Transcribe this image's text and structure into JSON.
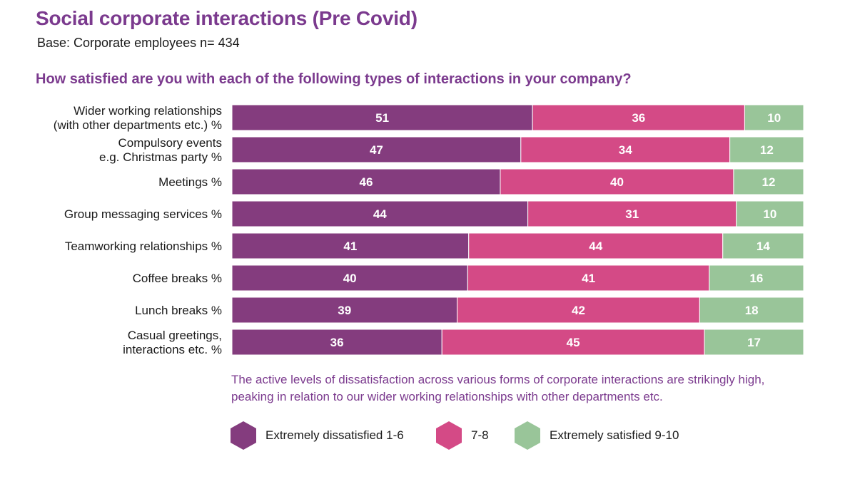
{
  "header": {
    "title": "Social corporate interactions (Pre Covid)",
    "base": "Base: Corporate employees n= 434",
    "question": "How satisfied are you with each of the following types of interactions in your company?"
  },
  "annotation": "The active levels of dissatisfaction across various forms of corporate interactions are strikingly high, peaking in relation to our wider working relationships with other departments etc.",
  "legend": [
    {
      "label": "Extremely dissatisfied 1-6",
      "color": "#843c7e"
    },
    {
      "label": "7-8",
      "color": "#d44a86"
    },
    {
      "label": "Extremely satisfied 9-10",
      "color": "#99c599"
    }
  ],
  "chart_data": {
    "type": "bar",
    "orientation": "horizontal",
    "stacked": true,
    "categories": [
      [
        "Wider working relationships",
        "(with other departments etc.) %"
      ],
      [
        "Compulsory events",
        "e.g. Christmas party %"
      ],
      [
        "Meetings %"
      ],
      [
        "Group messaging services %"
      ],
      [
        "Teamworking relationships %"
      ],
      [
        "Coffee breaks %"
      ],
      [
        "Lunch breaks %"
      ],
      [
        "Casual greetings,",
        "interactions etc. %"
      ]
    ],
    "series": [
      {
        "name": "Extremely dissatisfied 1-6",
        "color": "#843c7e",
        "values": [
          51,
          47,
          46,
          44,
          41,
          40,
          39,
          36
        ]
      },
      {
        "name": "7-8",
        "color": "#d44a86",
        "values": [
          36,
          34,
          40,
          31,
          44,
          41,
          42,
          45
        ]
      },
      {
        "name": "Extremely satisfied 9-10",
        "color": "#99c599",
        "values": [
          10,
          12,
          12,
          10,
          14,
          16,
          18,
          17
        ]
      }
    ],
    "data_labels": true,
    "grid": false
  }
}
